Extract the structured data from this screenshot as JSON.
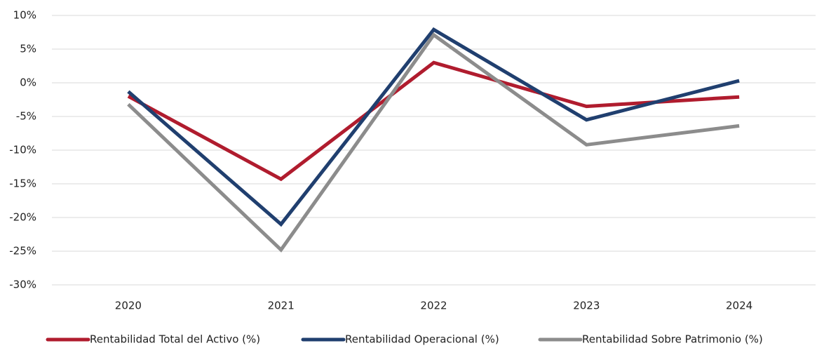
{
  "chart_data": {
    "type": "line",
    "categories": [
      "2020",
      "2021",
      "2022",
      "2023",
      "2024"
    ],
    "series": [
      {
        "name": "Rentabilidad Total del Activo (%)",
        "color": "#b01c2e",
        "values": [
          -2.0,
          -14.3,
          3.0,
          -3.5,
          -2.1
        ]
      },
      {
        "name": "Rentabilidad Operacional (%)",
        "color": "#203f6f",
        "values": [
          -1.3,
          -21.0,
          7.9,
          -5.5,
          0.3
        ]
      },
      {
        "name": "Rentabilidad Sobre Patrimonio (%)",
        "color": "#8c8c8c",
        "values": [
          -3.2,
          -24.8,
          7.1,
          -9.2,
          -6.4
        ]
      }
    ],
    "ylim": [
      -30,
      10
    ],
    "yticks": [
      {
        "value": -30,
        "label": "-30%"
      },
      {
        "value": -25,
        "label": "-25%"
      },
      {
        "value": -20,
        "label": "-20%"
      },
      {
        "value": -15,
        "label": "-15%"
      },
      {
        "value": -10,
        "label": "-10%"
      },
      {
        "value": -5,
        "label": "-5%"
      },
      {
        "value": 0,
        "label": "0%"
      },
      {
        "value": 5,
        "label": "5%"
      },
      {
        "value": 10,
        "label": "10%"
      }
    ],
    "grid": true,
    "legend": "bottom"
  }
}
